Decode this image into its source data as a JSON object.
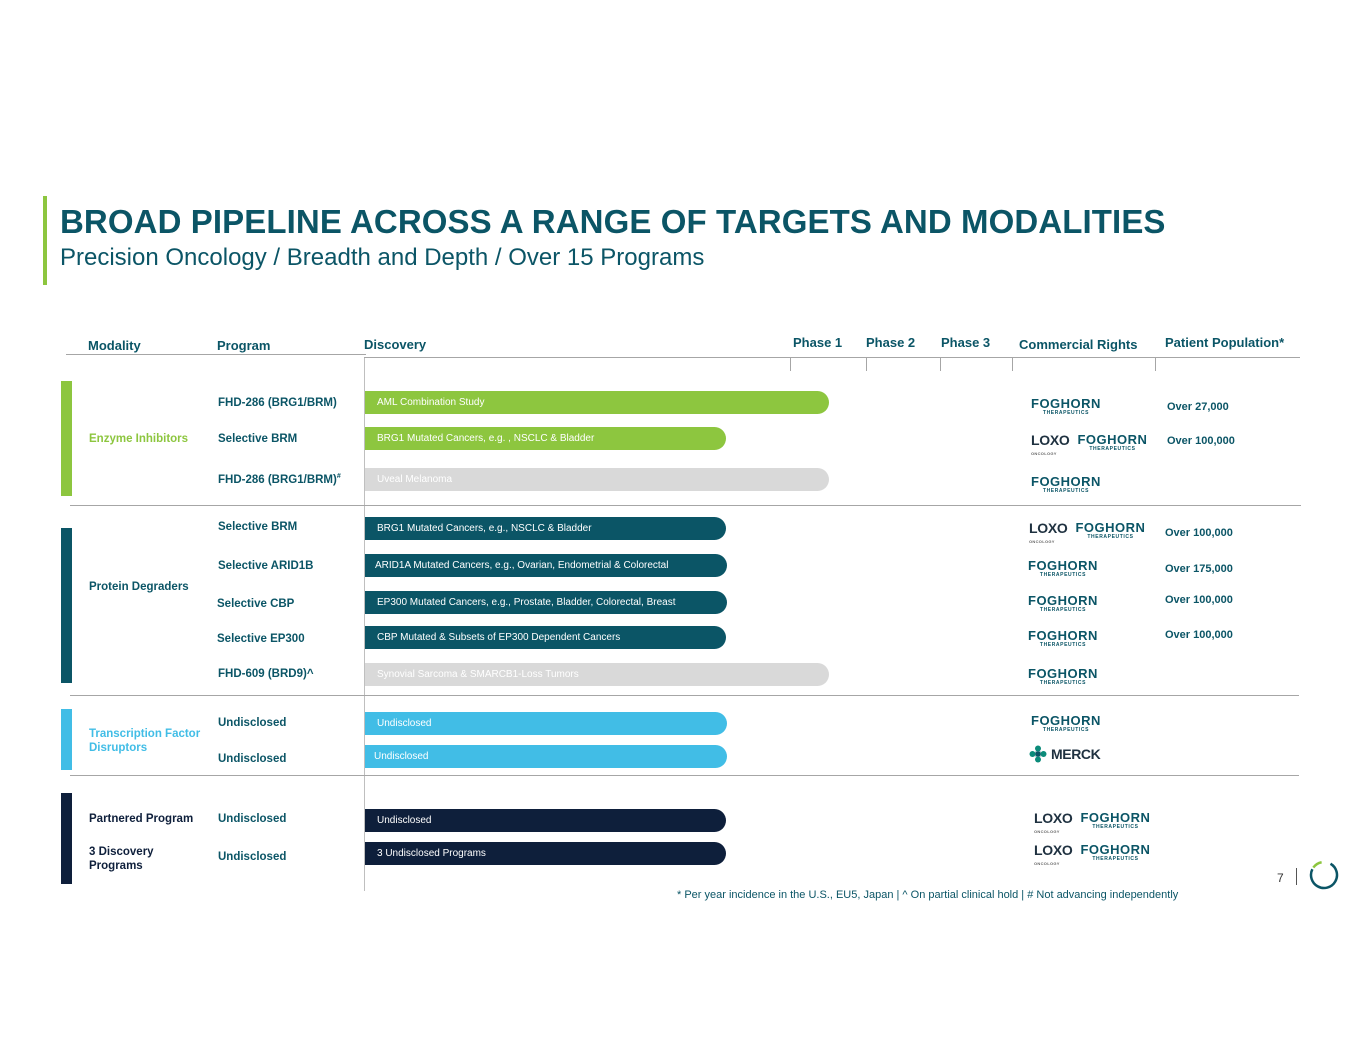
{
  "title": "BROAD PIPELINE ACROSS A RANGE OF TARGETS AND MODALITIES",
  "subtitle": "Precision Oncology / Breadth and Depth / Over 15 Programs",
  "headers": {
    "modality": "Modality",
    "program": "Program",
    "discovery": "Discovery",
    "phase1": "Phase 1",
    "phase2": "Phase 2",
    "phase3": "Phase 3",
    "rights": "Commercial Rights",
    "population": "Patient Population*"
  },
  "modalities": [
    {
      "label": "Enzyme Inhibitors",
      "color": "#8dc63f"
    },
    {
      "label": "Protein Degraders",
      "color": "#0b5566"
    },
    {
      "label": "Transcription Factor Disruptors",
      "color": "#41bde6"
    },
    {
      "label": "Partnered Program",
      "color": "#0e1f3b"
    },
    {
      "label": "3 Discovery Programs",
      "color": "#0e1f3b"
    }
  ],
  "programs": [
    {
      "name": "FHD-286 (BRG1/BRM)",
      "indication": "AML Combination Study",
      "stage": "Phase 1",
      "population": "Over 27,000",
      "rights": "Foghorn"
    },
    {
      "name": "Selective BRM",
      "indication": "BRG1 Mutated Cancers, e.g. , NSCLC & Bladder",
      "stage": "Discovery",
      "population": "Over 100,000",
      "rights": "Loxo / Foghorn"
    },
    {
      "name": "FHD-286 (BRG1/BRM)",
      "name_mark": "#",
      "indication": "Uveal Melanoma",
      "stage": "Phase 1",
      "population": "",
      "rights": "Foghorn"
    },
    {
      "name": "Selective BRM",
      "indication": "BRG1 Mutated Cancers, e.g., NSCLC & Bladder",
      "stage": "Discovery",
      "population": "Over 100,000",
      "rights": "Loxo / Foghorn"
    },
    {
      "name": "Selective ARID1B",
      "indication": "ARID1A Mutated Cancers, e.g., Ovarian, Endometrial & Colorectal",
      "stage": "Discovery",
      "population": "Over 175,000",
      "rights": "Foghorn"
    },
    {
      "name": "Selective CBP",
      "indication": "EP300 Mutated Cancers, e.g., Prostate, Bladder, Colorectal, Breast",
      "stage": "Discovery",
      "population": "Over 100,000",
      "rights": "Foghorn"
    },
    {
      "name": "Selective EP300",
      "indication": "CBP Mutated & Subsets of EP300 Dependent Cancers",
      "stage": "Discovery",
      "population": "Over 100,000",
      "rights": "Foghorn"
    },
    {
      "name": "FHD-609 (BRD9)^",
      "indication": "Synovial Sarcoma & SMARCB1-Loss Tumors",
      "stage": "Phase 1",
      "population": "",
      "rights": "Foghorn"
    },
    {
      "name": "Undisclosed",
      "indication": "Undisclosed",
      "stage": "Discovery",
      "population": "",
      "rights": "Foghorn"
    },
    {
      "name": "Undisclosed",
      "indication": "Undisclosed",
      "stage": "Discovery",
      "population": "",
      "rights": "Merck"
    },
    {
      "name": "Undisclosed",
      "indication": "Undisclosed",
      "stage": "Discovery",
      "population": "",
      "rights": "Loxo / Foghorn"
    },
    {
      "name": "Undisclosed",
      "indication": "3 Undisclosed Programs",
      "stage": "Discovery",
      "population": "",
      "rights": "Loxo / Foghorn"
    }
  ],
  "logos": {
    "foghorn": "FOGHORN",
    "foghorn_sub": "THERAPEUTICS",
    "loxo": "LOXO",
    "loxo_sub": "ONCOLOGY",
    "merck": "MERCK"
  },
  "colors": {
    "green": "#8dc63f",
    "teal": "#0b5566",
    "sky": "#41bde6",
    "navy": "#0e1f3b",
    "grey": "#d9d9d9"
  },
  "footnote": "* Per year incidence in the U.S., EU5, Japan | ^ On partial clinical hold | # Not advancing independently",
  "page_number": "7"
}
